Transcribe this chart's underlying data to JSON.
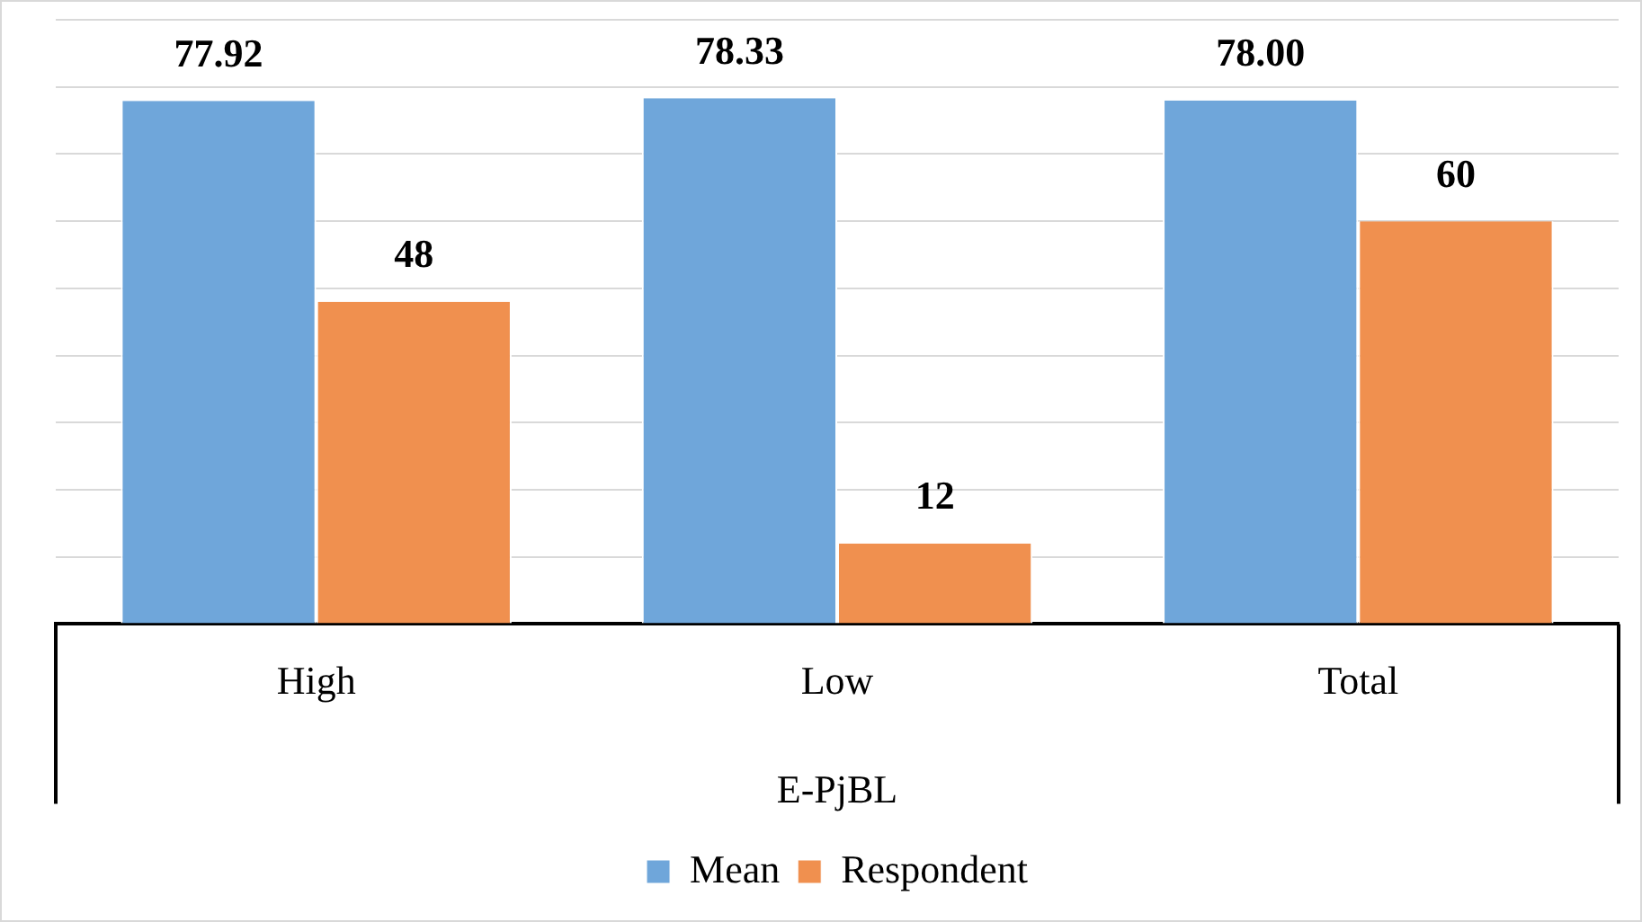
{
  "chart_data": {
    "type": "bar",
    "xlabel": "E-PjBL",
    "categories": [
      "High",
      "Low",
      "Total"
    ],
    "series": [
      {
        "name": "Mean",
        "color": "#6fa6da",
        "values": [
          77.92,
          78.33,
          78.0
        ],
        "value_labels": [
          "77.92",
          "78.33",
          "78.00"
        ]
      },
      {
        "name": "Respondent",
        "color": "#f0904f",
        "values": [
          48,
          12,
          60
        ],
        "value_labels": [
          "48",
          "12",
          "60"
        ]
      }
    ],
    "tick_labels": "x",
    "grid": "y",
    "legend": "bottom"
  }
}
